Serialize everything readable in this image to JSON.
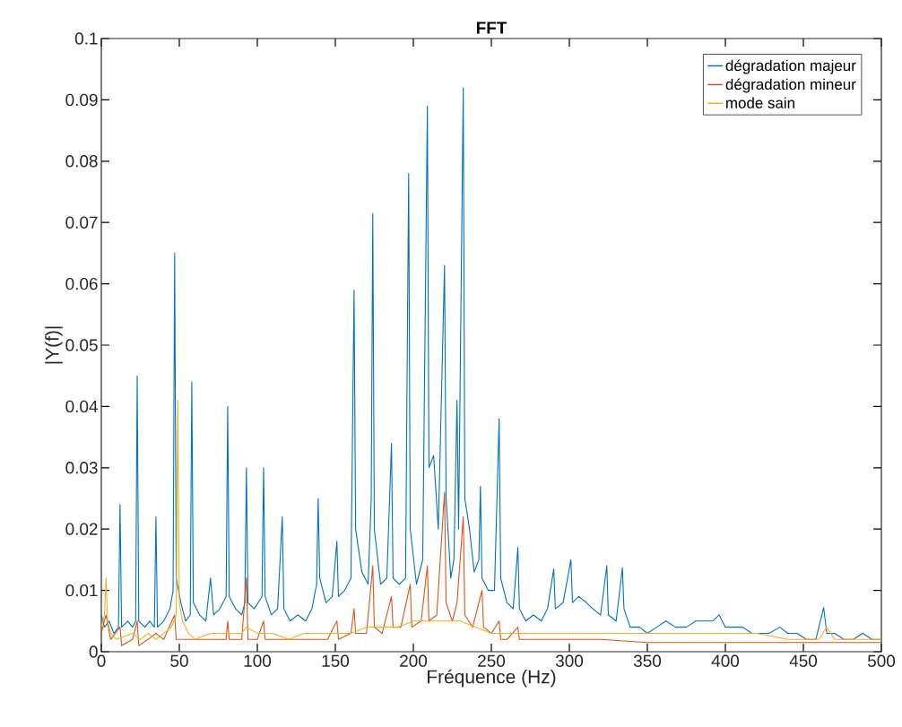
{
  "chart_data": {
    "type": "line",
    "title": "FFT",
    "xlabel": "Fréquence (Hz)",
    "ylabel": "|Y(f)|",
    "xlim": [
      0,
      500
    ],
    "ylim": [
      0,
      0.1
    ],
    "xticks": [
      0,
      50,
      100,
      150,
      200,
      250,
      300,
      350,
      400,
      450,
      500
    ],
    "yticks": [
      0,
      0.01,
      0.02,
      0.03,
      0.04,
      0.05,
      0.06,
      0.07,
      0.08,
      0.09,
      0.1
    ],
    "legend": "top right",
    "grid": false,
    "marker": "none",
    "line_style": "solid",
    "series": [
      {
        "name": "dégradation majeur",
        "color": "#0072bd",
        "x": [
          0,
          2,
          5,
          8,
          11,
          12,
          13,
          17,
          20,
          22,
          23,
          24,
          28,
          31,
          34,
          35,
          36,
          40,
          44,
          46,
          47,
          48,
          51,
          54,
          57,
          58,
          59,
          63,
          67,
          70,
          72,
          76,
          80,
          81,
          82,
          86,
          90,
          92,
          93,
          94,
          98,
          103,
          104,
          105,
          109,
          113,
          116,
          117,
          121,
          126,
          131,
          135,
          138,
          139,
          140,
          144,
          148,
          151,
          152,
          156,
          160,
          162,
          163,
          167,
          171,
          173,
          174,
          175,
          179,
          183,
          186,
          187,
          191,
          195,
          197,
          198,
          202,
          206,
          209,
          210,
          213,
          216,
          220,
          221,
          224,
          226,
          228,
          229,
          232,
          233,
          236,
          239,
          242,
          243,
          244,
          248,
          252,
          255,
          256,
          260,
          264,
          267,
          268,
          272,
          277,
          282,
          286,
          290,
          291,
          296,
          301,
          302,
          306,
          311,
          315,
          320,
          324,
          325,
          330,
          334,
          335,
          339,
          345,
          350,
          356,
          362,
          368,
          375,
          381,
          388,
          392,
          396,
          400,
          406,
          411,
          417,
          422,
          428,
          435,
          440,
          446,
          452,
          458,
          463,
          465,
          470,
          476,
          482,
          488,
          494,
          500
        ],
        "values": [
          0.006,
          0.004,
          0.005,
          0.003,
          0.004,
          0.024,
          0.004,
          0.005,
          0.004,
          0.005,
          0.045,
          0.005,
          0.004,
          0.005,
          0.004,
          0.022,
          0.004,
          0.005,
          0.007,
          0.01,
          0.065,
          0.012,
          0.008,
          0.005,
          0.006,
          0.044,
          0.008,
          0.006,
          0.005,
          0.012,
          0.006,
          0.007,
          0.009,
          0.04,
          0.009,
          0.007,
          0.006,
          0.008,
          0.03,
          0.008,
          0.007,
          0.009,
          0.03,
          0.009,
          0.006,
          0.007,
          0.022,
          0.007,
          0.005,
          0.006,
          0.005,
          0.007,
          0.011,
          0.025,
          0.012,
          0.008,
          0.009,
          0.018,
          0.009,
          0.01,
          0.012,
          0.059,
          0.02,
          0.013,
          0.011,
          0.025,
          0.0715,
          0.02,
          0.011,
          0.012,
          0.034,
          0.012,
          0.011,
          0.012,
          0.078,
          0.02,
          0.011,
          0.015,
          0.089,
          0.03,
          0.032,
          0.02,
          0.063,
          0.025,
          0.012,
          0.015,
          0.041,
          0.02,
          0.092,
          0.025,
          0.02,
          0.013,
          0.015,
          0.027,
          0.012,
          0.01,
          0.01,
          0.038,
          0.012,
          0.008,
          0.007,
          0.017,
          0.007,
          0.005,
          0.006,
          0.005,
          0.007,
          0.0135,
          0.007,
          0.008,
          0.015,
          0.008,
          0.009,
          0.008,
          0.007,
          0.006,
          0.014,
          0.006,
          0.005,
          0.0137,
          0.007,
          0.004,
          0.004,
          0.003,
          0.004,
          0.005,
          0.004,
          0.004,
          0.005,
          0.005,
          0.005,
          0.006,
          0.004,
          0.004,
          0.004,
          0.003,
          0.003,
          0.003,
          0.004,
          0.003,
          0.003,
          0.002,
          0.002,
          0.0072,
          0.003,
          0.003,
          0.002,
          0.002,
          0.003,
          0.002,
          0.002
        ]
      },
      {
        "name": "dégradation mineur",
        "color": "#d95319",
        "x": [
          0,
          3,
          6,
          12,
          13,
          20,
          23,
          24,
          30,
          35,
          40,
          47,
          48,
          55,
          60,
          70,
          80,
          81,
          82,
          90,
          93,
          94,
          100,
          104,
          105,
          115,
          130,
          145,
          151,
          152,
          160,
          162,
          163,
          170,
          174,
          175,
          180,
          186,
          187,
          192,
          198,
          199,
          205,
          209,
          210,
          215,
          220,
          221,
          225,
          228,
          232,
          233,
          238,
          244,
          245,
          250,
          255,
          256,
          260,
          267,
          268,
          280,
          300,
          320,
          350,
          400,
          450,
          500
        ],
        "values": [
          0.003,
          0.006,
          0.002,
          0.004,
          0.001,
          0.002,
          0.005,
          0.001,
          0.002,
          0.003,
          0.002,
          0.006,
          0.002,
          0.002,
          0.002,
          0.002,
          0.002,
          0.005,
          0.002,
          0.002,
          0.012,
          0.002,
          0.002,
          0.005,
          0.002,
          0.002,
          0.002,
          0.002,
          0.005,
          0.002,
          0.003,
          0.007,
          0.003,
          0.003,
          0.014,
          0.004,
          0.003,
          0.009,
          0.004,
          0.004,
          0.011,
          0.004,
          0.005,
          0.014,
          0.005,
          0.006,
          0.026,
          0.008,
          0.005,
          0.008,
          0.022,
          0.006,
          0.004,
          0.01,
          0.004,
          0.003,
          0.005,
          0.002,
          0.002,
          0.004,
          0.002,
          0.002,
          0.002,
          0.002,
          0.0015,
          0.0015,
          0.0015,
          0.0015
        ]
      },
      {
        "name": "mode sain",
        "color": "#edb120",
        "x": [
          0,
          2,
          3,
          4,
          6,
          10,
          20,
          25,
          30,
          35,
          40,
          45,
          48,
          49,
          50,
          52,
          56,
          60,
          70,
          80,
          90,
          93,
          100,
          110,
          120,
          130,
          140,
          150,
          160,
          170,
          180,
          190,
          200,
          210,
          220,
          230,
          240,
          250,
          260,
          280,
          300,
          320,
          340,
          360,
          380,
          400,
          420,
          440,
          460,
          465,
          470,
          485,
          500
        ],
        "values": [
          0.004,
          0.006,
          0.012,
          0.005,
          0.003,
          0.002,
          0.003,
          0.002,
          0.003,
          0.002,
          0.003,
          0.004,
          0.006,
          0.041,
          0.008,
          0.005,
          0.003,
          0.002,
          0.003,
          0.003,
          0.003,
          0.004,
          0.003,
          0.003,
          0.002,
          0.003,
          0.003,
          0.003,
          0.003,
          0.004,
          0.004,
          0.004,
          0.005,
          0.005,
          0.005,
          0.005,
          0.004,
          0.003,
          0.003,
          0.003,
          0.003,
          0.003,
          0.003,
          0.003,
          0.003,
          0.003,
          0.003,
          0.002,
          0.002,
          0.004,
          0.002,
          0.002,
          0.002
        ]
      }
    ]
  }
}
